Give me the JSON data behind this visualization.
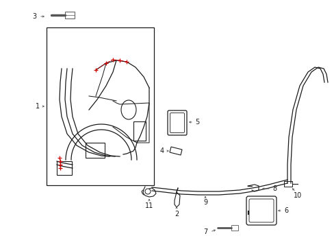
{
  "background": "#ffffff",
  "figsize": [
    4.89,
    3.6
  ],
  "dpi": 100,
  "line_color": "#1a1a1a",
  "red_color": "#cc0000",
  "gray_color": "#555555"
}
